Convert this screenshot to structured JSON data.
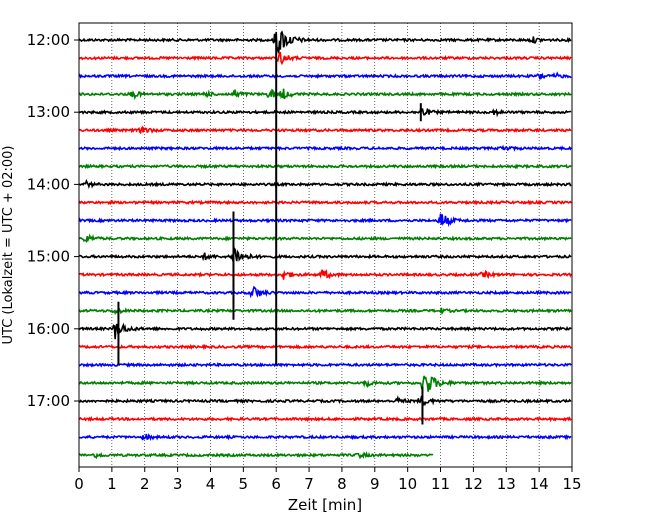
{
  "chart_data": {
    "type": "line",
    "title": "",
    "xlabel": "Zeit  [min]",
    "ylabel": "UTC (Lokalzeit = UTC + 02:00)",
    "xlim": [
      0,
      15
    ],
    "x_ticks": [
      "0",
      "1",
      "2",
      "3",
      "4",
      "5",
      "6",
      "7",
      "8",
      "9",
      "10",
      "11",
      "12",
      "13",
      "14",
      "15"
    ],
    "y_ticks": [
      {
        "label": "12:00",
        "trace": 0
      },
      {
        "label": "13:00",
        "trace": 4
      },
      {
        "label": "14:00",
        "trace": 8
      },
      {
        "label": "15:00",
        "trace": 12
      },
      {
        "label": "16:00",
        "trace": 16
      },
      {
        "label": "17:00",
        "trace": 20
      }
    ],
    "trace_interval_min": 15,
    "start_utc": "12:00",
    "grid": "vertical dotted at each minute",
    "colors": [
      "#000000",
      "#ff0000",
      "#0000ff",
      "#008000"
    ],
    "traces": [
      {
        "start": "12:00",
        "color": "#000000",
        "events": [
          [
            6.0,
            3.0
          ],
          [
            13.8,
            0.5
          ]
        ]
      },
      {
        "start": "12:15",
        "color": "#ff0000",
        "events": [
          [
            6.1,
            1.2
          ]
        ]
      },
      {
        "start": "12:30",
        "color": "#0000ff",
        "events": [
          [
            14.0,
            0.6
          ],
          [
            14.5,
            0.4
          ]
        ]
      },
      {
        "start": "12:45",
        "color": "#008000",
        "events": [
          [
            1.6,
            0.8
          ],
          [
            3.8,
            0.6
          ],
          [
            4.7,
            0.8
          ],
          [
            5.8,
            1.0
          ],
          [
            6.2,
            0.8
          ]
        ]
      },
      {
        "start": "13:00",
        "color": "#000000",
        "events": [
          [
            10.4,
            1.0
          ],
          [
            12.6,
            0.5
          ]
        ]
      },
      {
        "start": "13:15",
        "color": "#ff0000",
        "events": [
          [
            1.9,
            0.8
          ]
        ]
      },
      {
        "start": "13:30",
        "color": "#0000ff",
        "events": [
          [
            12.9,
            0.5
          ]
        ]
      },
      {
        "start": "13:45",
        "color": "#008000",
        "events": []
      },
      {
        "start": "14:00",
        "color": "#000000",
        "events": [
          [
            0.2,
            0.5
          ]
        ]
      },
      {
        "start": "14:15",
        "color": "#ff0000",
        "events": []
      },
      {
        "start": "14:30",
        "color": "#0000ff",
        "events": [
          [
            11.0,
            1.5
          ]
        ]
      },
      {
        "start": "14:45",
        "color": "#008000",
        "events": [
          [
            0.2,
            0.8
          ]
        ]
      },
      {
        "start": "15:00",
        "color": "#000000",
        "events": [
          [
            4.7,
            2.0
          ],
          [
            3.8,
            0.6
          ]
        ]
      },
      {
        "start": "15:15",
        "color": "#ff0000",
        "events": [
          [
            6.2,
            0.9
          ],
          [
            7.4,
            0.9
          ],
          [
            12.3,
            0.6
          ]
        ]
      },
      {
        "start": "15:30",
        "color": "#0000ff",
        "events": [
          [
            5.3,
            1.2
          ]
        ]
      },
      {
        "start": "15:45",
        "color": "#008000",
        "events": [
          [
            1.1,
            0.5
          ],
          [
            11.0,
            0.4
          ]
        ]
      },
      {
        "start": "16:00",
        "color": "#000000",
        "events": [
          [
            1.1,
            1.8
          ]
        ]
      },
      {
        "start": "16:15",
        "color": "#ff0000",
        "events": []
      },
      {
        "start": "16:30",
        "color": "#0000ff",
        "events": []
      },
      {
        "start": "16:45",
        "color": "#008000",
        "events": [
          [
            10.5,
            2.5
          ],
          [
            8.7,
            0.6
          ]
        ]
      },
      {
        "start": "17:00",
        "color": "#000000",
        "events": [
          [
            10.4,
            1.0
          ],
          [
            9.7,
            0.5
          ]
        ]
      },
      {
        "start": "17:15",
        "color": "#ff0000",
        "events": []
      },
      {
        "start": "17:30",
        "color": "#0000ff",
        "events": [
          [
            2.0,
            0.5
          ]
        ]
      },
      {
        "start": "17:45",
        "color": "#008000",
        "events": [
          [
            0.5,
            0.4
          ],
          [
            8.5,
            0.5
          ]
        ],
        "end_min": 10.8
      }
    ],
    "vertical_spikes": [
      {
        "x": 6.0,
        "from_trace": 0,
        "to_trace": 18
      },
      {
        "x": 4.7,
        "from_trace": 9.5,
        "to_trace": 15.5
      },
      {
        "x": 1.2,
        "from_trace": 14.5,
        "to_trace": 18
      },
      {
        "x": 10.45,
        "from_trace": 19.2,
        "to_trace": 21.3
      },
      {
        "x": 10.4,
        "from_trace": 3.5,
        "to_trace": 4.5
      }
    ]
  }
}
